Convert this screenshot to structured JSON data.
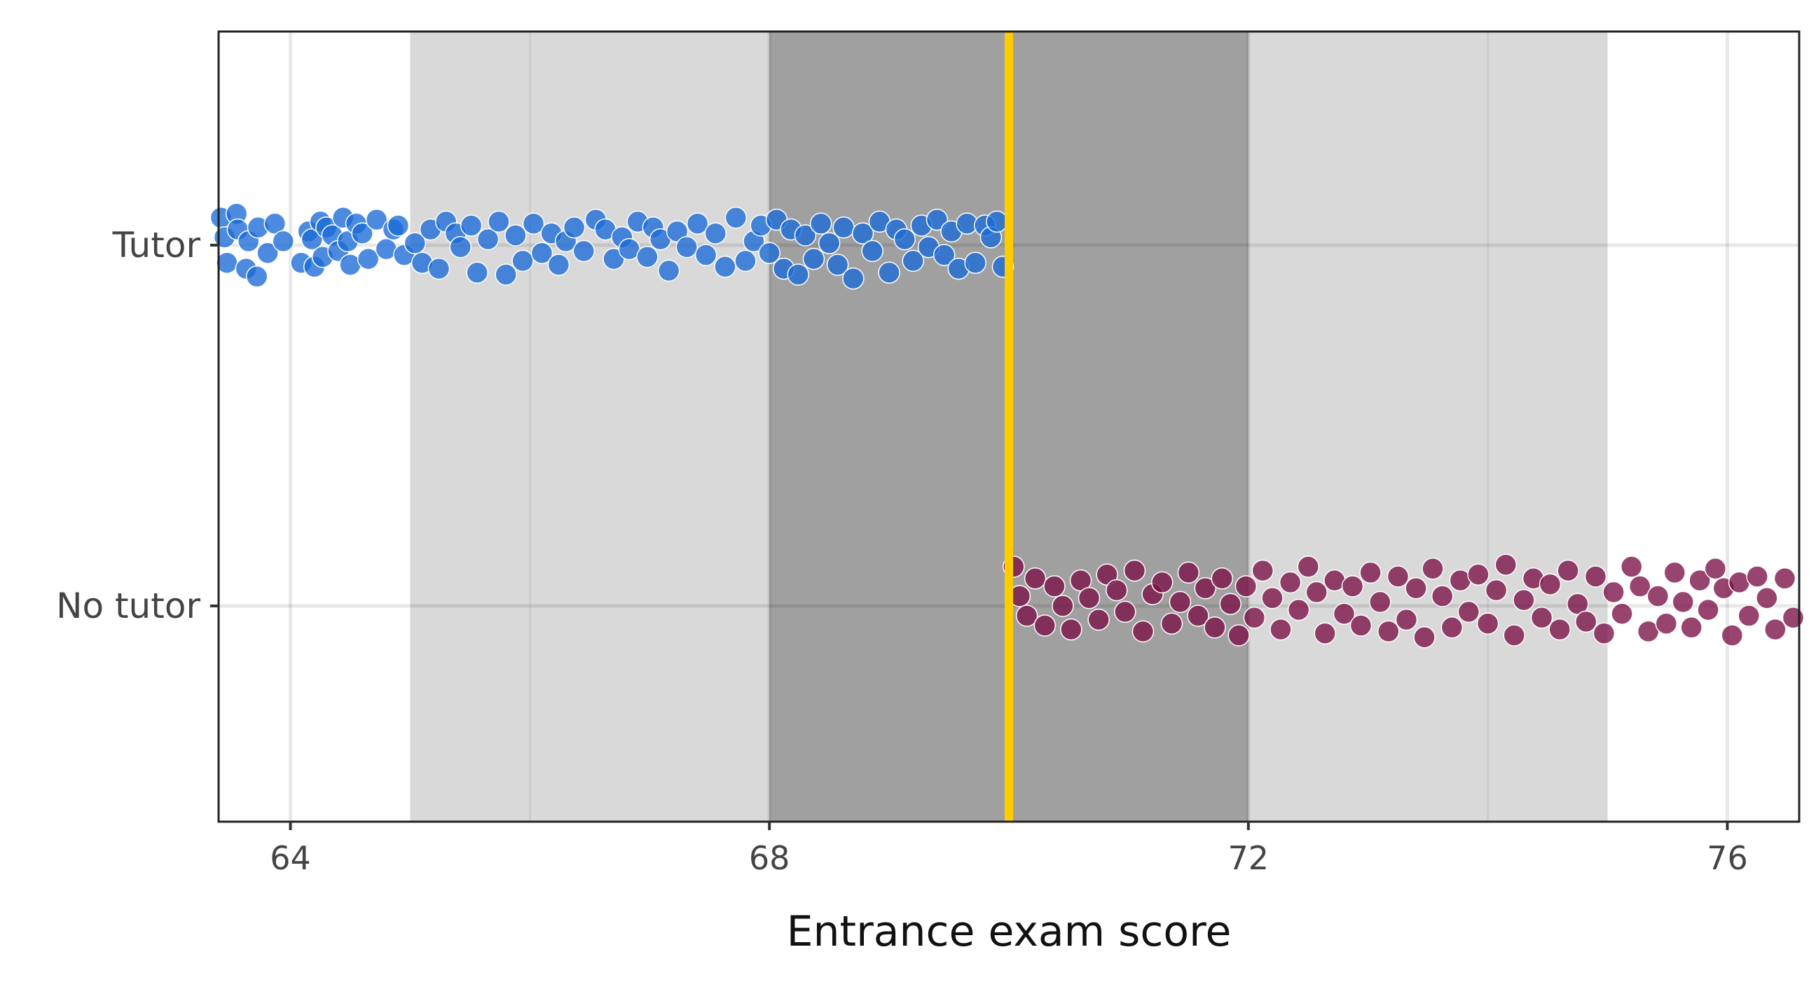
{
  "chart_data": {
    "type": "scatter",
    "title": "",
    "xlabel": "Entrance exam score",
    "ylabel": "",
    "xlim": [
      63.4,
      76.6
    ],
    "x_ticks": [
      64,
      68,
      72,
      76
    ],
    "categories": [
      "No tutor",
      "Tutor"
    ],
    "grid": true,
    "legend": "none",
    "cutoff": 70,
    "cutoff_color": "#FFCC00",
    "bands": [
      {
        "from": 65,
        "to": 75,
        "color": "#d9d9d9"
      },
      {
        "from": 68,
        "to": 72,
        "color": "#a0a0a0"
      }
    ],
    "series": [
      {
        "category": "Tutor",
        "color": "#1a6ad6",
        "points": [
          [
            63.42,
            0.14
          ],
          [
            63.45,
            0.04
          ],
          [
            63.47,
            -0.09
          ],
          [
            63.55,
            0.16
          ],
          [
            63.56,
            0.08
          ],
          [
            63.63,
            -0.12
          ],
          [
            63.65,
            0.02
          ],
          [
            63.72,
            -0.16
          ],
          [
            63.73,
            0.09
          ],
          [
            63.81,
            -0.04
          ],
          [
            63.87,
            0.11
          ],
          [
            63.94,
            0.02
          ],
          [
            64.09,
            -0.09
          ],
          [
            64.15,
            0.07
          ],
          [
            64.18,
            0.03
          ],
          [
            64.2,
            -0.11
          ],
          [
            64.25,
            0.12
          ],
          [
            64.27,
            -0.06
          ],
          [
            64.3,
            0.09
          ],
          [
            64.35,
            0.05
          ],
          [
            64.4,
            -0.03
          ],
          [
            64.44,
            0.14
          ],
          [
            64.48,
            0.02
          ],
          [
            64.5,
            -0.1
          ],
          [
            64.55,
            0.11
          ],
          [
            64.6,
            0.06
          ],
          [
            64.65,
            -0.07
          ],
          [
            64.72,
            0.13
          ],
          [
            64.8,
            -0.02
          ],
          [
            64.86,
            0.08
          ],
          [
            64.9,
            0.1
          ],
          [
            64.95,
            -0.05
          ],
          [
            65.04,
            0.01
          ],
          [
            65.1,
            -0.09
          ],
          [
            65.17,
            0.08
          ],
          [
            65.24,
            -0.12
          ],
          [
            65.3,
            0.12
          ],
          [
            65.38,
            0.06
          ],
          [
            65.42,
            -0.01
          ],
          [
            65.51,
            0.1
          ],
          [
            65.56,
            -0.14
          ],
          [
            65.65,
            0.03
          ],
          [
            65.74,
            0.12
          ],
          [
            65.8,
            -0.15
          ],
          [
            65.88,
            0.05
          ],
          [
            65.94,
            -0.08
          ],
          [
            66.03,
            0.11
          ],
          [
            66.1,
            -0.04
          ],
          [
            66.18,
            0.06
          ],
          [
            66.24,
            -0.1
          ],
          [
            66.3,
            0.02
          ],
          [
            66.37,
            0.09
          ],
          [
            66.45,
            -0.03
          ],
          [
            66.55,
            0.13
          ],
          [
            66.63,
            0.08
          ],
          [
            66.7,
            -0.07
          ],
          [
            66.77,
            0.04
          ],
          [
            66.83,
            -0.02
          ],
          [
            66.9,
            0.12
          ],
          [
            66.98,
            -0.06
          ],
          [
            67.03,
            0.09
          ],
          [
            67.09,
            0.03
          ],
          [
            67.16,
            -0.13
          ],
          [
            67.23,
            0.07
          ],
          [
            67.31,
            -0.01
          ],
          [
            67.4,
            0.11
          ],
          [
            67.47,
            -0.05
          ],
          [
            67.55,
            0.06
          ],
          [
            67.63,
            -0.11
          ],
          [
            67.72,
            0.14
          ],
          [
            67.8,
            -0.08
          ],
          [
            67.87,
            0.02
          ],
          [
            67.93,
            0.1
          ],
          [
            68.0,
            -0.04
          ],
          [
            68.06,
            0.13
          ],
          [
            68.12,
            -0.12
          ],
          [
            68.18,
            0.08
          ],
          [
            68.24,
            -0.15
          ],
          [
            68.3,
            0.05
          ],
          [
            68.37,
            -0.07
          ],
          [
            68.43,
            0.11
          ],
          [
            68.5,
            0.01
          ],
          [
            68.57,
            -0.1
          ],
          [
            68.62,
            0.09
          ],
          [
            68.7,
            -0.17
          ],
          [
            68.78,
            0.06
          ],
          [
            68.86,
            -0.03
          ],
          [
            68.92,
            0.12
          ],
          [
            69.0,
            -0.14
          ],
          [
            69.06,
            0.08
          ],
          [
            69.13,
            0.03
          ],
          [
            69.2,
            -0.08
          ],
          [
            69.27,
            0.1
          ],
          [
            69.33,
            -0.01
          ],
          [
            69.4,
            0.13
          ],
          [
            69.46,
            -0.05
          ],
          [
            69.52,
            0.07
          ],
          [
            69.58,
            -0.12
          ],
          [
            69.65,
            0.11
          ],
          [
            69.72,
            -0.09
          ],
          [
            69.8,
            0.1
          ],
          [
            69.85,
            0.04
          ],
          [
            69.9,
            0.12
          ],
          [
            69.95,
            -0.11
          ]
        ]
      },
      {
        "category": "No tutor",
        "color": "#7a0f45",
        "points": [
          [
            70.04,
            0.2
          ],
          [
            70.09,
            0.05
          ],
          [
            70.15,
            -0.05
          ],
          [
            70.22,
            0.14
          ],
          [
            70.3,
            -0.1
          ],
          [
            70.38,
            0.1
          ],
          [
            70.45,
            0.0
          ],
          [
            70.52,
            -0.12
          ],
          [
            70.6,
            0.13
          ],
          [
            70.67,
            0.04
          ],
          [
            70.75,
            -0.07
          ],
          [
            70.82,
            0.16
          ],
          [
            70.9,
            0.08
          ],
          [
            70.97,
            -0.03
          ],
          [
            71.05,
            0.18
          ],
          [
            71.12,
            -0.13
          ],
          [
            71.2,
            0.06
          ],
          [
            71.28,
            0.12
          ],
          [
            71.36,
            -0.09
          ],
          [
            71.43,
            0.02
          ],
          [
            71.5,
            0.17
          ],
          [
            71.58,
            -0.05
          ],
          [
            71.64,
            0.09
          ],
          [
            71.72,
            -0.11
          ],
          [
            71.78,
            0.14
          ],
          [
            71.85,
            0.01
          ],
          [
            71.92,
            -0.15
          ],
          [
            71.98,
            0.1
          ],
          [
            72.05,
            -0.06
          ],
          [
            72.12,
            0.18
          ],
          [
            72.2,
            0.04
          ],
          [
            72.27,
            -0.12
          ],
          [
            72.35,
            0.12
          ],
          [
            72.42,
            -0.02
          ],
          [
            72.5,
            0.2
          ],
          [
            72.57,
            0.07
          ],
          [
            72.64,
            -0.14
          ],
          [
            72.72,
            0.13
          ],
          [
            72.8,
            -0.04
          ],
          [
            72.87,
            0.1
          ],
          [
            72.94,
            -0.1
          ],
          [
            73.02,
            0.17
          ],
          [
            73.1,
            0.02
          ],
          [
            73.17,
            -0.13
          ],
          [
            73.25,
            0.15
          ],
          [
            73.32,
            -0.07
          ],
          [
            73.4,
            0.09
          ],
          [
            73.47,
            -0.16
          ],
          [
            73.54,
            0.19
          ],
          [
            73.62,
            0.05
          ],
          [
            73.7,
            -0.11
          ],
          [
            73.77,
            0.13
          ],
          [
            73.84,
            -0.03
          ],
          [
            73.92,
            0.16
          ],
          [
            74.0,
            -0.09
          ],
          [
            74.07,
            0.08
          ],
          [
            74.15,
            0.21
          ],
          [
            74.22,
            -0.15
          ],
          [
            74.3,
            0.03
          ],
          [
            74.38,
            0.14
          ],
          [
            74.45,
            -0.06
          ],
          [
            74.52,
            0.11
          ],
          [
            74.6,
            -0.12
          ],
          [
            74.67,
            0.18
          ],
          [
            74.75,
            0.01
          ],
          [
            74.82,
            -0.08
          ],
          [
            74.9,
            0.15
          ],
          [
            74.97,
            -0.14
          ],
          [
            75.05,
            0.07
          ],
          [
            75.12,
            -0.04
          ],
          [
            75.2,
            0.2
          ],
          [
            75.27,
            0.1
          ],
          [
            75.34,
            -0.13
          ],
          [
            75.42,
            0.05
          ],
          [
            75.49,
            -0.09
          ],
          [
            75.56,
            0.17
          ],
          [
            75.63,
            0.02
          ],
          [
            75.7,
            -0.11
          ],
          [
            75.77,
            0.13
          ],
          [
            75.84,
            -0.02
          ],
          [
            75.9,
            0.19
          ],
          [
            75.97,
            0.09
          ],
          [
            76.04,
            -0.15
          ],
          [
            76.1,
            0.12
          ],
          [
            76.18,
            -0.05
          ],
          [
            76.25,
            0.15
          ],
          [
            76.33,
            0.04
          ],
          [
            76.4,
            -0.12
          ],
          [
            76.48,
            0.14
          ],
          [
            76.55,
            -0.06
          ]
        ]
      }
    ]
  }
}
